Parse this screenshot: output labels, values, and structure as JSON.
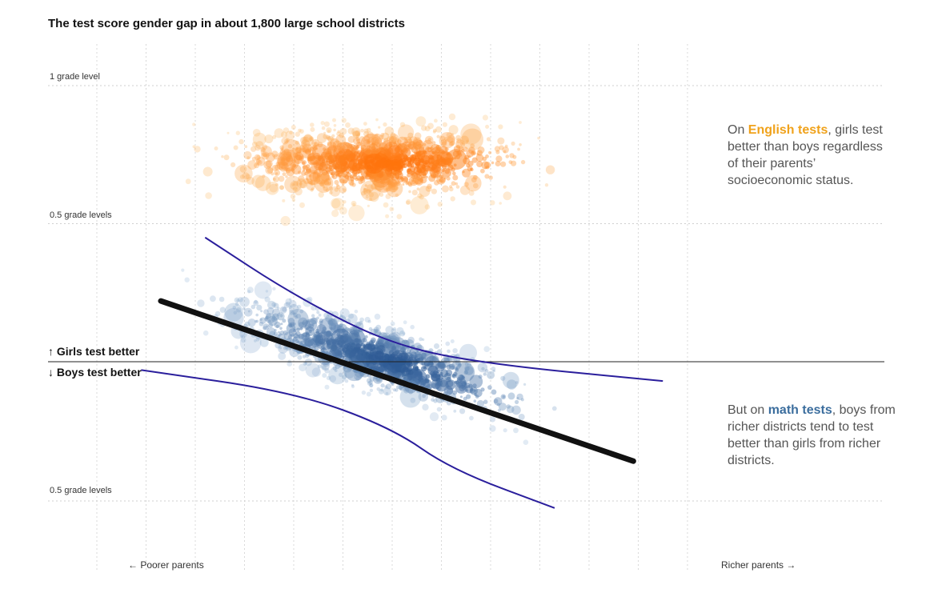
{
  "title": "The test score gender gap in about 1,800 large school districts",
  "y_labels": {
    "top": "1 grade level",
    "english_half": "0.5 grade levels",
    "math_half": "0.5 grade levels"
  },
  "direction": {
    "girls": "↑ Girls test better",
    "boys": "↓ Boys test better"
  },
  "x_labels": {
    "left": "← Poorer parents",
    "right": "Richer parents →"
  },
  "annotations": {
    "english": {
      "before": "On ",
      "highlight": "English tests",
      "after": ", girls test better than boys regardless of their parents’ socioeconomic status."
    },
    "math": {
      "before": "But on ",
      "highlight": "math tests",
      "after": ", boys from richer districts tend to test better than girls from richer districts."
    }
  },
  "colors": {
    "english_light": "#fdbf6f",
    "english_dark": "#ff6a00",
    "math_light": "#9ebcda",
    "math_dark": "#1f4e8c",
    "trend": "#111111",
    "confidence": "#2a1e9c"
  },
  "chart_data": {
    "type": "scatter",
    "title": "The test score gender gap in about 1,800 large school districts",
    "x_axis": {
      "label_left": "← Poorer parents",
      "label_right": "Richer parents →",
      "ticks_shown": false,
      "range": [
        -3,
        3
      ]
    },
    "y_axis": {
      "unit": "grade levels",
      "range": [
        -0.9,
        1.05
      ],
      "labeled_ticks": [
        1,
        0.5,
        0,
        -0.5
      ],
      "zero_line": true
    },
    "grid": true,
    "series": [
      {
        "name": "English tests",
        "approx_n": 1800,
        "x_range": [
          -2.8,
          2.4
        ],
        "y_mean": 0.72,
        "y_spread": 0.1,
        "slope": 0
      },
      {
        "name": "math tests",
        "approx_n": 1800,
        "x_range": [
          -2.4,
          2.4
        ],
        "y_mean": 0.0,
        "y_spread": 0.09,
        "slope": -0.11
      }
    ],
    "trend_line": {
      "series": "math tests",
      "x": [
        -2.35,
        2.45
      ],
      "y": [
        0.22,
        -0.36
      ]
    },
    "confidence_band": {
      "upper": [
        [
          -1.9,
          0.45
        ],
        [
          -1.0,
          0.24
        ],
        [
          0.0,
          0.06
        ],
        [
          1.0,
          -0.01
        ],
        [
          2.75,
          -0.07
        ]
      ],
      "lower": [
        [
          -2.55,
          -0.03
        ],
        [
          -1.0,
          -0.11
        ],
        [
          0.0,
          -0.24
        ],
        [
          0.6,
          -0.39
        ],
        [
          1.65,
          -0.53
        ]
      ]
    }
  }
}
